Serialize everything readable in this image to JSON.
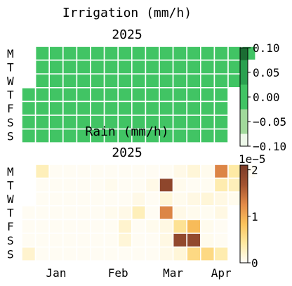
{
  "figure": {
    "suptitle": "Irrigation (mm/h)"
  },
  "chart_data": [
    {
      "type": "heatmap",
      "name": "irrigation",
      "title": "2025",
      "y_tick_labels": [
        "M",
        "T",
        "W",
        "T",
        "F",
        "S",
        "S"
      ],
      "week_count": 17,
      "values": [
        [
          null,
          0,
          0,
          0,
          0,
          0,
          0,
          0,
          0,
          0,
          0,
          0,
          0,
          0,
          0,
          0,
          0
        ],
        [
          null,
          0,
          0,
          0,
          0,
          0,
          0,
          0,
          0,
          0,
          0,
          0,
          0,
          0,
          0,
          0,
          null
        ],
        [
          null,
          0,
          0,
          0,
          0,
          0,
          0,
          0,
          0,
          0,
          0,
          0,
          0,
          0,
          0,
          0,
          null
        ],
        [
          0,
          0,
          0,
          0,
          0,
          0,
          0,
          0,
          0,
          0,
          0,
          0,
          0,
          0,
          0,
          null,
          null
        ],
        [
          0,
          0,
          0,
          0,
          0,
          0,
          0,
          0,
          0,
          0,
          0,
          0,
          0,
          0,
          0,
          null,
          null
        ],
        [
          0,
          0,
          0,
          0,
          0,
          0,
          0,
          0,
          0,
          0,
          0,
          0,
          0,
          0,
          0,
          null,
          null
        ],
        [
          0,
          0,
          0,
          0,
          0,
          0,
          0,
          0,
          0,
          0,
          0,
          0,
          0,
          0,
          0,
          null,
          null
        ]
      ],
      "colorbar": {
        "ticks": [
          "0.10",
          "0.05",
          "0.00",
          "−0.05",
          "−0.10"
        ],
        "min": -0.1,
        "max": 0.1,
        "levels": [
          -0.1,
          -0.075,
          -0.025,
          0.025,
          0.075,
          0.1
        ],
        "colors": [
          "#edf8e9",
          "#a1d99b",
          "#41c464",
          "#2aa150",
          "#1b6d33"
        ]
      },
      "cell_color": "#41c464"
    },
    {
      "type": "heatmap",
      "name": "rain",
      "subtitle": "Rain (mm/h)",
      "title": "2025",
      "y_tick_labels": [
        "M",
        "T",
        "W",
        "T",
        "F",
        "S",
        "S"
      ],
      "x_tick_labels": [
        "Jan",
        "Feb",
        "Mar",
        "Apr"
      ],
      "x_tick_weeks": [
        2,
        6.5,
        10.5,
        14
      ],
      "week_count": 17,
      "values": [
        [
          null,
          0.3,
          0.02,
          0.02,
          0.02,
          0.02,
          0.02,
          0.02,
          0.02,
          0.02,
          0.02,
          0.08,
          0.15,
          0.05,
          1.3,
          0.4,
          0.02
        ],
        [
          null,
          0.02,
          0.02,
          0.02,
          0.02,
          0.02,
          0.05,
          0.02,
          0.02,
          0.08,
          1.9,
          0.05,
          0.02,
          0.03,
          0.35,
          0.3,
          null
        ],
        [
          null,
          0.02,
          0.02,
          0.02,
          0.02,
          0.02,
          0.02,
          0.02,
          0.08,
          0.02,
          0.15,
          0.05,
          0.1,
          0.15,
          0.1,
          0.05,
          null
        ],
        [
          0.02,
          0.02,
          0.02,
          0.02,
          0.02,
          0.02,
          0.05,
          0.08,
          0.3,
          0.02,
          1.3,
          0.08,
          0.05,
          0.03,
          0.1,
          null,
          null
        ],
        [
          0.02,
          0.02,
          0.02,
          0.02,
          0.02,
          0.02,
          0.02,
          0.2,
          0.02,
          0.05,
          0.1,
          0.5,
          0.9,
          0.05,
          0.02,
          null,
          null
        ],
        [
          0.02,
          0.02,
          0.02,
          0.02,
          0.02,
          0.02,
          0.02,
          0.15,
          0.02,
          0.02,
          0.1,
          1.85,
          1.85,
          0.05,
          0.02,
          null,
          null
        ],
        [
          0.2,
          0.02,
          0.02,
          0.02,
          0.02,
          0.02,
          0.02,
          0.02,
          0.02,
          0.02,
          0.08,
          0.15,
          0.6,
          0.6,
          0.35,
          null,
          null
        ]
      ],
      "colorbar": {
        "ticks": [
          "2",
          "1",
          "0"
        ],
        "tick_values": [
          2,
          1,
          0
        ],
        "min": 0,
        "max": 2.1,
        "offset_text": "1e−5"
      },
      "colormap": [
        "#fffdf7",
        "#fee9a1",
        "#fbc35c",
        "#e28a48",
        "#a35330",
        "#7a3b28"
      ]
    }
  ]
}
